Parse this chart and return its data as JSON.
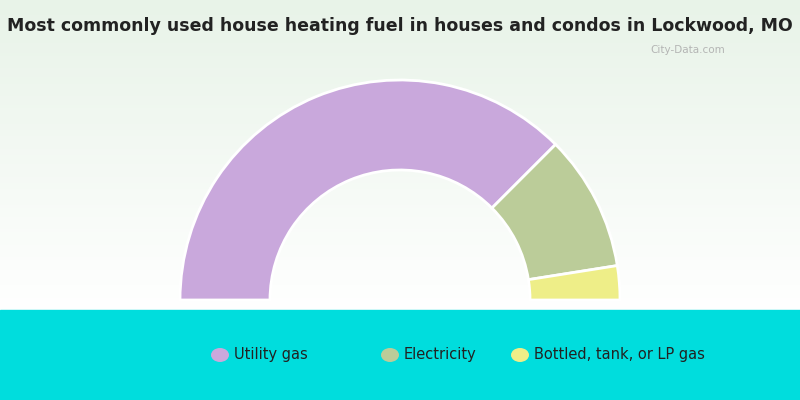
{
  "title": "Most commonly used house heating fuel in houses and condos in Lockwood, MO",
  "segments": [
    {
      "label": "Utility gas",
      "value": 75.0,
      "color": "#C9A8DC"
    },
    {
      "label": "Electricity",
      "value": 20.0,
      "color": "#BBCC99"
    },
    {
      "label": "Bottled, tank, or LP gas",
      "value": 5.0,
      "color": "#EEEE88"
    }
  ],
  "bottom_bar_color": "#00DDDD",
  "title_color": "#222222",
  "legend_text_color": "#222222",
  "watermark_text": "City-Data.com",
  "title_fontsize": 12.5,
  "legend_fontsize": 10.5
}
